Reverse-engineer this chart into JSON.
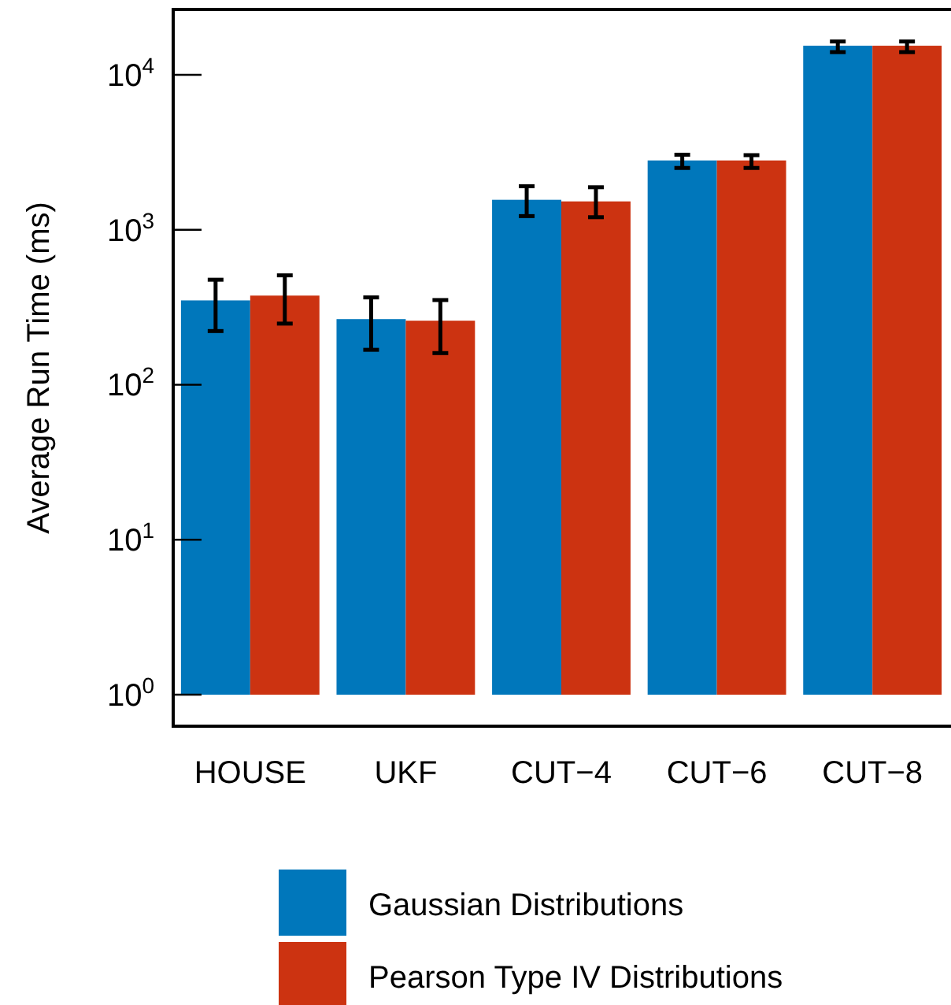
{
  "chart_data": {
    "type": "bar",
    "ylabel": "Average Run Time (ms)",
    "categories": [
      "HOUSE",
      "UKF",
      "CUT−4",
      "CUT−6",
      "CUT−8"
    ],
    "series": [
      {
        "name": "Gaussian Distributions",
        "color": "#0077bb",
        "values": [
          349,
          264,
          1560,
          2800,
          15400
        ],
        "errors": [
          [
            222,
            476
          ],
          [
            168,
            366
          ],
          [
            1225,
            1910
          ],
          [
            2505,
            3050
          ],
          [
            14000,
            16400
          ]
        ]
      },
      {
        "name": "Pearson Type IV Distributions",
        "color": "#cc3311",
        "values": [
          375,
          258,
          1523,
          2800,
          15400
        ],
        "errors": [
          [
            248,
            508
          ],
          [
            160,
            352
          ],
          [
            1205,
            1880
          ],
          [
            2505,
            3030
          ],
          [
            14000,
            16400
          ]
        ]
      }
    ],
    "log": true,
    "ylim": [
      1,
      26400
    ],
    "yticks": [
      {
        "value": 1,
        "label": "10$^{0}$"
      },
      {
        "value": 10,
        "label": "10$^{1}$"
      },
      {
        "value": 100,
        "label": "10$^{2}$"
      },
      {
        "value": 1000,
        "label": "10$^{3}$"
      },
      {
        "value": 10000,
        "label": "10$^{4}$"
      }
    ],
    "grid": false,
    "legend": "bottom"
  }
}
